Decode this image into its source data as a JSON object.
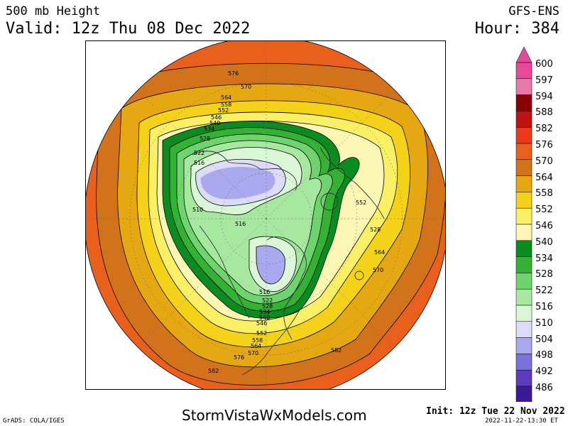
{
  "header": {
    "title": "500 mb Height",
    "valid": "Valid: 12z Thu 08 Dec 2022",
    "model": "GFS-ENS",
    "hour": "Hour: 384"
  },
  "footer": {
    "site": "StormVistaWxModels.com",
    "grads": "GrADS: COLA/IGES",
    "init": "Init: 12z Tue 22 Nov 2022",
    "stamp": "2022-11-22-13:30 ET"
  },
  "colorbar": {
    "levels": [
      {
        "value": "600",
        "color": "#e8489a"
      },
      {
        "value": "597",
        "color": "#e878aa"
      },
      {
        "value": "594",
        "color": "#8b0000"
      },
      {
        "value": "588",
        "color": "#c01010"
      },
      {
        "value": "582",
        "color": "#ee3a1c"
      },
      {
        "value": "576",
        "color": "#e8601c"
      },
      {
        "value": "570",
        "color": "#d2731c"
      },
      {
        "value": "564",
        "color": "#e6a812"
      },
      {
        "value": "558",
        "color": "#f5d21a"
      },
      {
        "value": "552",
        "color": "#faf066"
      },
      {
        "value": "546",
        "color": "#fcf6b4"
      },
      {
        "value": "540",
        "color": "#0b8c1e"
      },
      {
        "value": "534",
        "color": "#34b234"
      },
      {
        "value": "528",
        "color": "#6ed46e"
      },
      {
        "value": "522",
        "color": "#a6e8a0"
      },
      {
        "value": "516",
        "color": "#dcf6d8"
      },
      {
        "value": "510",
        "color": "#dcdcf6"
      },
      {
        "value": "504",
        "color": "#aaa8ee"
      },
      {
        "value": "498",
        "color": "#7a72dc"
      },
      {
        "value": "492",
        "color": "#5a3cbc"
      },
      {
        "value": "486",
        "color": "#3a1a96"
      }
    ],
    "top_arrow_color": "#e8489a",
    "bottom_arrow_color": "#2a0a80"
  },
  "map": {
    "contour_labels": [
      {
        "text": "576"
      },
      {
        "text": "570"
      },
      {
        "text": "564"
      },
      {
        "text": "558"
      },
      {
        "text": "552"
      },
      {
        "text": "546"
      },
      {
        "text": "540"
      },
      {
        "text": "534"
      },
      {
        "text": "528"
      },
      {
        "text": "522"
      },
      {
        "text": "516"
      },
      {
        "text": "510"
      },
      {
        "text": "516"
      },
      {
        "text": "552"
      },
      {
        "text": "528"
      },
      {
        "text": "564"
      },
      {
        "text": "570"
      },
      {
        "text": "516"
      },
      {
        "text": "522"
      },
      {
        "text": "528"
      },
      {
        "text": "534"
      },
      {
        "text": "540"
      },
      {
        "text": "546"
      },
      {
        "text": "552"
      },
      {
        "text": "558"
      },
      {
        "text": "564"
      },
      {
        "text": "570"
      },
      {
        "text": "576"
      },
      {
        "text": "582"
      },
      {
        "text": "582"
      }
    ]
  }
}
